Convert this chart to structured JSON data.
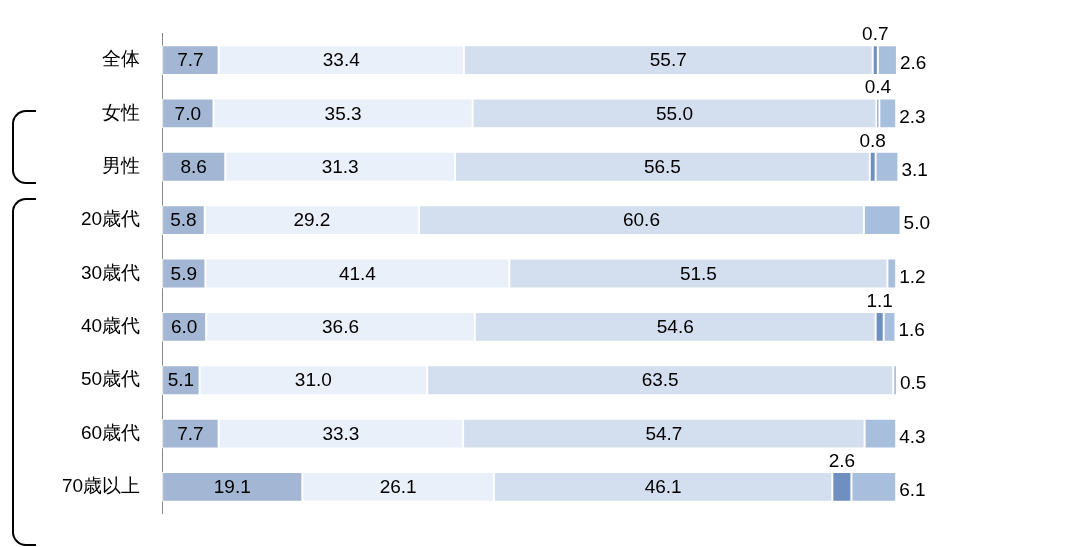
{
  "chart_data": {
    "type": "bar",
    "orientation": "horizontal",
    "stacked": true,
    "grid": false,
    "legend": false,
    "tick_labels": "y",
    "categories": [
      "全体",
      "女性",
      "男性",
      "20歳代",
      "30歳代",
      "40歳代",
      "50歳代",
      "60歳代",
      "70歳以上"
    ],
    "series": [
      {
        "color": "#a3b6d3",
        "values": [
          7.7,
          7.0,
          8.6,
          5.8,
          5.9,
          6.0,
          5.1,
          7.7,
          19.1
        ],
        "value_labels": [
          "7.7",
          "7.0",
          "8.6",
          "5.8",
          "5.9",
          "6.0",
          "5.1",
          "7.7",
          "19.1"
        ]
      },
      {
        "color": "#eaf0f9",
        "values": [
          33.4,
          35.3,
          31.3,
          29.2,
          41.4,
          36.6,
          31.0,
          33.3,
          26.1
        ],
        "value_labels": [
          "33.4",
          "35.3",
          "31.3",
          "29.2",
          "41.4",
          "36.6",
          "31.0",
          "33.3",
          "26.1"
        ]
      },
      {
        "color": "#d3deef",
        "values": [
          55.7,
          55.0,
          56.5,
          60.6,
          51.5,
          54.6,
          63.5,
          54.7,
          46.1
        ],
        "value_labels": [
          "55.7",
          "55.0",
          "56.5",
          "60.6",
          "51.5",
          "54.6",
          "63.5",
          "54.7",
          "46.1"
        ]
      },
      {
        "color": "#6f8fc0",
        "values": [
          0.7,
          0.4,
          0.8,
          null,
          null,
          1.1,
          null,
          null,
          2.6
        ],
        "value_labels": [
          "0.7",
          "0.4",
          "0.8",
          null,
          null,
          "1.1",
          null,
          null,
          "2.6"
        ]
      },
      {
        "color": "#a7bedd",
        "values": [
          2.6,
          2.3,
          3.1,
          5.0,
          1.2,
          1.6,
          0.5,
          4.3,
          6.1
        ],
        "value_labels": [
          "2.6",
          "2.3",
          "3.1",
          "5.0",
          "1.2",
          "1.6",
          "0.5",
          "4.3",
          "6.1"
        ]
      }
    ]
  }
}
